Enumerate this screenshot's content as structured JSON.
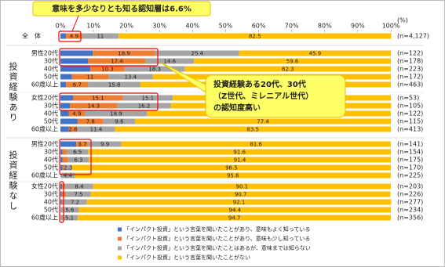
{
  "chart_data": {
    "type": "stacked_bar_horizontal",
    "categories": [
      "全　体",
      "男性20代",
      "30代",
      "40代",
      "50代",
      "60歳以上",
      "女性20代",
      "30代",
      "40代",
      "50代",
      "60歳以上",
      "男性20代",
      "30代",
      "40代",
      "50代",
      "60歳以上",
      "女性20代",
      "30代",
      "40代",
      "50代",
      "60歳以上"
    ],
    "n_labels": [
      "(n=4,127)",
      "(n=122)",
      "(n=178)",
      "(n=223)",
      "(n=172)",
      "(n=463)",
      "(n=53)",
      "(n=105)",
      "(n=122)",
      "(n=115)",
      "(n=413)",
      "(n=141)",
      "(n=154)",
      "(n=175)",
      "(n=170)",
      "(n=225)",
      "(n=203)",
      "(n=226)",
      "(n=277)",
      "(n=234)",
      "(n=356)"
    ],
    "groups": [
      "投資経験あり",
      "投資経験なし"
    ],
    "series": [
      {
        "name": "「インパクト投資」という言葉を聞いたことがあり、意味もよく知っている",
        "color": "#4472c4",
        "values": [
          1.7,
          9.8,
          8.4,
          9.1,
          3.5,
          1.7,
          3.8,
          2.9,
          2.5,
          5.2,
          2.5,
          4.8,
          0.6,
          0.6,
          0.6,
          0,
          0.5,
          0.4,
          0.4,
          0,
          0
        ]
      },
      {
        "name": "「インパクト投資」という言葉を聞いたことがあり、意味も少し知っている",
        "color": "#ed7d31",
        "values": [
          4.9,
          18.9,
          17.4,
          10.3,
          11.0,
          6.7,
          15.1,
          14.3,
          4.9,
          7.8,
          2.6,
          3.7,
          1.3,
          1.7,
          0.6,
          0,
          1.0,
          1.3,
          0.4,
          0,
          0.2
        ]
      },
      {
        "name": "「インパクト投資」という言葉を聞いたことはあるが、意味までは知らない",
        "color": "#a5a5a5",
        "values": [
          11.0,
          25.4,
          14.6,
          18.3,
          13.4,
          15.8,
          15.1,
          16.2,
          18.9,
          9.6,
          11.4,
          9.9,
          6.5,
          6.3,
          2.3,
          4.4,
          8.4,
          7.5,
          7.2,
          5.6,
          5.1
        ]
      },
      {
        "name": "「インパクト投資」という言葉を聞いたことがない",
        "color": "#ffc000",
        "values": [
          82.5,
          45.9,
          59.6,
          62.3,
          72.1,
          75.8,
          66.0,
          66.7,
          73.7,
          77.4,
          83.5,
          81.6,
          91.6,
          91.4,
          96.5,
          95.6,
          90.1,
          90.7,
          92.1,
          94.4,
          94.7
        ]
      }
    ],
    "xlim": [
      0,
      100
    ],
    "xticks": [
      {
        "value": 0,
        "label": "0%"
      },
      {
        "value": 10,
        "label": "10%"
      },
      {
        "value": 20,
        "label": "20%"
      },
      {
        "value": 30,
        "label": "30%"
      },
      {
        "value": 40,
        "label": "40%"
      },
      {
        "value": 50,
        "label": "50%"
      },
      {
        "value": 60,
        "label": "60%"
      },
      {
        "value": 70,
        "label": "70%"
      },
      {
        "value": 80,
        "label": "80%"
      },
      {
        "value": 90,
        "label": "90%"
      },
      {
        "value": 100,
        "label": "100%"
      }
    ],
    "x_unit": "(%)",
    "annotations": [
      [
        "意味を多少なりとも知る認知層は6.6%"
      ],
      [
        "投資経験ある20代、30代",
        "（Z世代、ミレニアル世代）",
        "の認知度高い"
      ]
    ]
  }
}
